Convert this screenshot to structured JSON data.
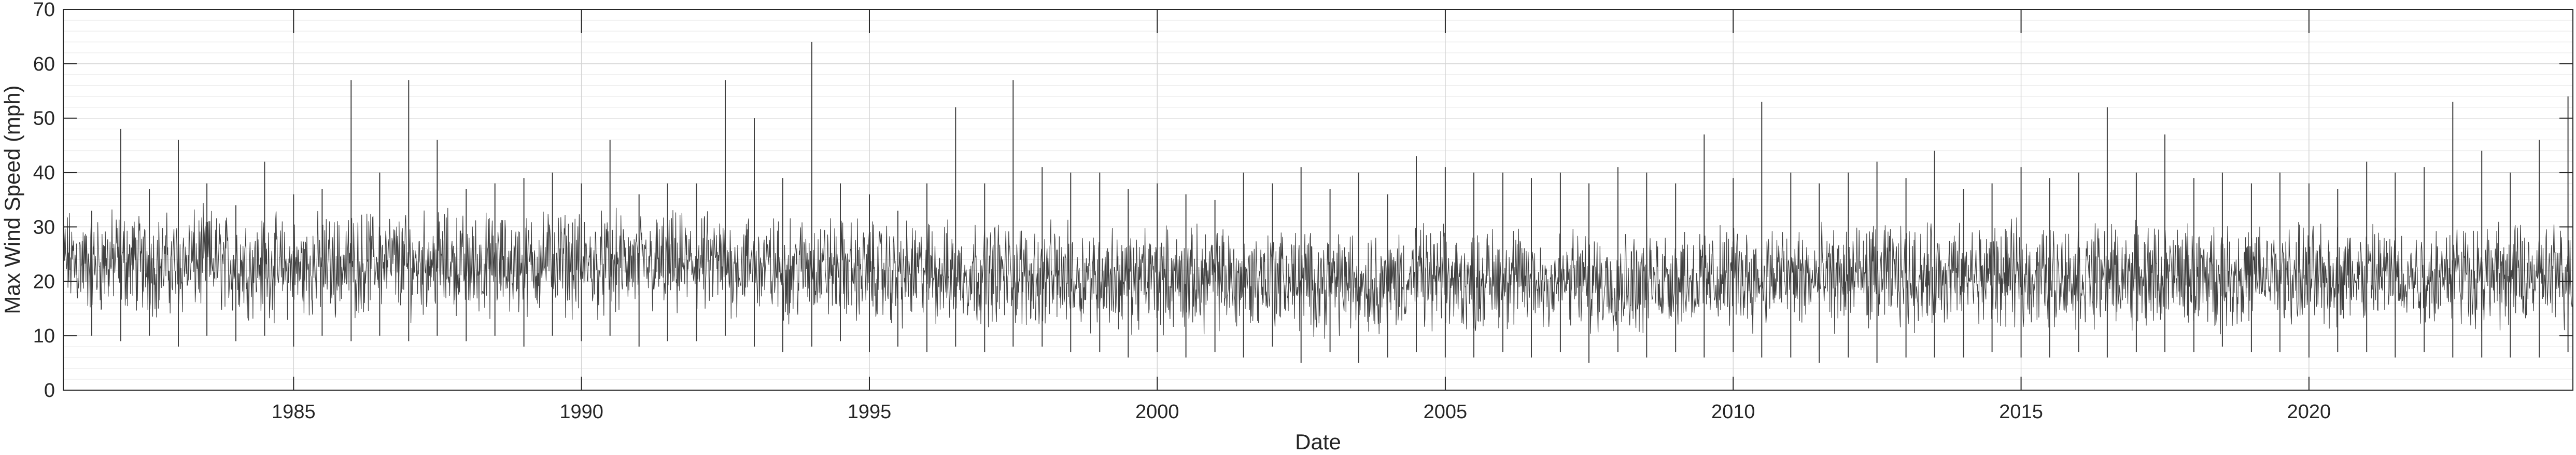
{
  "chart_data": {
    "type": "line",
    "title": "",
    "xlabel": "Date",
    "ylabel": "Max Wind Speed (mph)",
    "xlim": [
      "1981-01-01",
      "2024-08-01"
    ],
    "ylim": [
      0,
      70
    ],
    "x_ticks": [
      "1985",
      "1990",
      "1995",
      "2000",
      "2005",
      "2010",
      "2015",
      "2020"
    ],
    "y_ticks": [
      "0",
      "10",
      "20",
      "30",
      "40",
      "50",
      "60",
      "70"
    ],
    "grid": true,
    "minor_grid": true,
    "legend": "none",
    "series": [
      {
        "color": "#404040",
        "x": [
          "1981-01-01",
          "1981-07-01",
          "1982-01-01",
          "1982-07-01",
          "1983-01-01",
          "1983-07-01",
          "1984-01-01",
          "1984-07-01",
          "1985-01-01",
          "1985-07-01",
          "1986-01-01",
          "1986-07-01",
          "1987-01-01",
          "1987-07-01",
          "1988-01-01",
          "1988-07-01",
          "1989-01-01",
          "1989-07-01",
          "1990-01-01",
          "1990-07-01",
          "1991-01-01",
          "1991-07-01",
          "1992-01-01",
          "1992-07-01",
          "1993-01-01",
          "1993-07-01",
          "1994-01-01",
          "1994-07-01",
          "1995-01-01",
          "1995-07-01",
          "1996-01-01",
          "1996-07-01",
          "1997-01-01",
          "1997-07-01",
          "1998-01-01",
          "1998-07-01",
          "1999-01-01",
          "1999-07-01",
          "2000-01-01",
          "2000-07-01",
          "2001-01-01",
          "2001-07-01",
          "2002-01-01",
          "2002-07-01",
          "2003-01-01",
          "2003-07-01",
          "2004-01-01",
          "2004-07-01",
          "2005-01-01",
          "2005-07-01",
          "2006-01-01",
          "2006-07-01",
          "2007-01-01",
          "2007-07-01",
          "2008-01-01",
          "2008-07-01",
          "2009-01-01",
          "2009-07-01",
          "2010-01-01",
          "2010-07-01",
          "2011-01-01",
          "2011-07-01",
          "2012-01-01",
          "2012-07-01",
          "2013-01-01",
          "2013-07-01",
          "2014-01-01",
          "2014-07-01",
          "2015-01-01",
          "2015-07-01",
          "2016-01-01",
          "2016-07-01",
          "2017-01-01",
          "2017-07-01",
          "2018-01-01",
          "2018-07-01",
          "2019-01-01",
          "2019-07-01",
          "2020-01-01",
          "2020-07-01",
          "2021-01-01",
          "2021-07-01",
          "2022-01-01",
          "2022-07-01",
          "2023-01-01",
          "2023-07-01",
          "2024-01-01",
          "2024-07-01"
        ],
        "y_max": [
          36,
          33,
          48,
          37,
          46,
          38,
          34,
          42,
          36,
          37,
          57,
          40,
          57,
          46,
          37,
          38,
          39,
          40,
          38,
          46,
          36,
          38,
          38,
          57,
          50,
          39,
          64,
          38,
          36,
          33,
          38,
          52,
          38,
          57,
          41,
          40,
          40,
          37,
          38,
          36,
          35,
          40,
          38,
          41,
          37,
          40,
          36,
          43,
          41,
          40,
          40,
          39,
          40,
          38,
          41,
          40,
          38,
          47,
          39,
          53,
          40,
          38,
          40,
          42,
          39,
          44,
          37,
          38,
          41,
          39,
          40,
          52,
          40,
          47,
          39,
          40,
          38,
          40,
          38,
          37,
          42,
          40,
          41,
          53,
          44,
          40,
          46,
          54
        ],
        "y_min": [
          9,
          10,
          9,
          10,
          8,
          10,
          9,
          10,
          8,
          10,
          9,
          10,
          9,
          10,
          9,
          10,
          8,
          10,
          9,
          10,
          8,
          9,
          9,
          10,
          8,
          7,
          8,
          9,
          7,
          8,
          7,
          8,
          7,
          8,
          8,
          7,
          7,
          6,
          7,
          6,
          7,
          6,
          8,
          5,
          7,
          5,
          6,
          7,
          6,
          6,
          7,
          6,
          7,
          5,
          7,
          6,
          7,
          6,
          7,
          6,
          6,
          5,
          6,
          5,
          6,
          6,
          6,
          7,
          6,
          6,
          7,
          6,
          7,
          7,
          7,
          8,
          7,
          7,
          6,
          7,
          7,
          6,
          7,
          6,
          6,
          6,
          6,
          7
        ],
        "y_typical": [
          21,
          20,
          21,
          20,
          20,
          21,
          20,
          20,
          19,
          20,
          20,
          21,
          20,
          21,
          20,
          20,
          20,
          21,
          20,
          20,
          20,
          20,
          20,
          20,
          20,
          19,
          20,
          19,
          19,
          18,
          19,
          18,
          19,
          18,
          18,
          18,
          18,
          17,
          18,
          17,
          18,
          17,
          18,
          17,
          17,
          17,
          17,
          18,
          17,
          17,
          18,
          17,
          17,
          17,
          17,
          17,
          18,
          17,
          18,
          18,
          18,
          17,
          18,
          18,
          18,
          18,
          18,
          18,
          18,
          18,
          18,
          18,
          18,
          18,
          18,
          18,
          18,
          18,
          18,
          18,
          18,
          18,
          18,
          19,
          18,
          18,
          18,
          18
        ]
      }
    ]
  }
}
